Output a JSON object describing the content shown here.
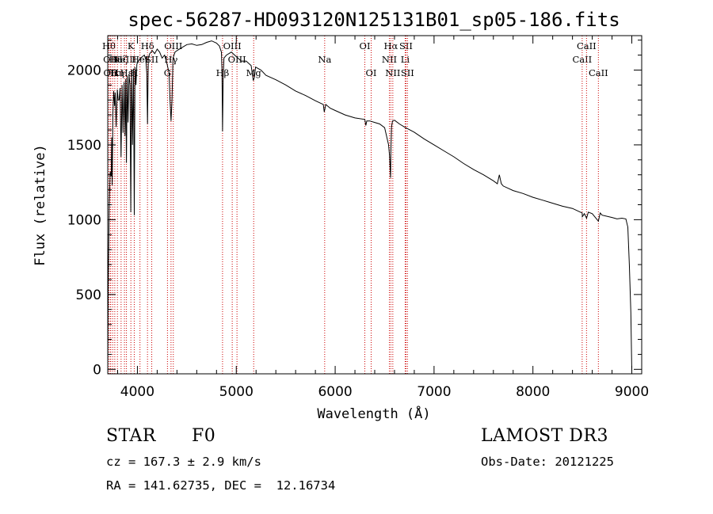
{
  "chart_data": {
    "type": "line",
    "title": "spec-56287-HD093120N125131B01_sp05-186.fits",
    "xlabel": "Wavelength (Å)",
    "ylabel": "Flux (relative)",
    "xlim": [
      3700,
      9100
    ],
    "ylim": [
      -30,
      2230
    ],
    "xticks": [
      4000,
      5000,
      6000,
      7000,
      8000,
      9000
    ],
    "yticks": [
      0,
      500,
      1000,
      1500,
      2000
    ],
    "grid": false,
    "series": [
      {
        "name": "spectrum",
        "color": "#000000",
        "x": [
          3700,
          3705,
          3715,
          3725,
          3735,
          3740,
          3745,
          3752,
          3760,
          3770,
          3775,
          3785,
          3797,
          3805,
          3815,
          3825,
          3835,
          3845,
          3855,
          3865,
          3875,
          3882,
          3889,
          3896,
          3905,
          3915,
          3925,
          3933,
          3941,
          3950,
          3960,
          3968,
          3976,
          3985,
          3995,
          4010,
          4030,
          4050,
          4070,
          4085,
          4095,
          4102,
          4110,
          4125,
          4150,
          4175,
          4200,
          4225,
          4250,
          4275,
          4300,
          4320,
          4330,
          4340,
          4350,
          4360,
          4380,
          4400,
          4450,
          4500,
          4550,
          4600,
          4650,
          4700,
          4750,
          4800,
          4830,
          4850,
          4855,
          4861,
          4867,
          4875,
          4900,
          4950,
          5000,
          5050,
          5100,
          5150,
          5172,
          5183,
          5195,
          5250,
          5300,
          5400,
          5500,
          5600,
          5700,
          5800,
          5880,
          5890,
          5896,
          5905,
          5950,
          6000,
          6100,
          6200,
          6300,
          6310,
          6320,
          6350,
          6400,
          6450,
          6500,
          6540,
          6550,
          6560,
          6563,
          6566,
          6570,
          6580,
          6600,
          6650,
          6700,
          6800,
          6900,
          7000,
          7100,
          7200,
          7300,
          7400,
          7500,
          7600,
          7640,
          7660,
          7680,
          7700,
          7800,
          7900,
          8000,
          8100,
          8200,
          8300,
          8400,
          8498,
          8500,
          8520,
          8542,
          8560,
          8600,
          8662,
          8680,
          8700,
          8800,
          8850,
          8900,
          8940,
          8960,
          8975,
          8990,
          9000
        ],
        "y": [
          0,
          560,
          1100,
          1320,
          1290,
          1550,
          1230,
          1710,
          1860,
          1760,
          1850,
          1620,
          1870,
          1800,
          1800,
          1880,
          1420,
          1900,
          1580,
          1920,
          1560,
          1940,
          1380,
          1960,
          1650,
          1970,
          1900,
          1050,
          2000,
          1500,
          2010,
          1030,
          2020,
          1900,
          2040,
          2060,
          2080,
          2090,
          2100,
          2070,
          1980,
          1640,
          2080,
          2110,
          2130,
          2110,
          2140,
          2120,
          2080,
          2100,
          2040,
          1980,
          1800,
          1660,
          1800,
          2080,
          2120,
          2130,
          2150,
          2170,
          2175,
          2165,
          2170,
          2185,
          2195,
          2180,
          2160,
          2120,
          2000,
          1590,
          1950,
          2080,
          2100,
          2120,
          2090,
          2060,
          2060,
          2030,
          1930,
          1950,
          2020,
          2000,
          1965,
          1935,
          1900,
          1860,
          1830,
          1795,
          1770,
          1720,
          1740,
          1770,
          1745,
          1730,
          1700,
          1680,
          1670,
          1630,
          1660,
          1660,
          1650,
          1640,
          1615,
          1500,
          1430,
          1280,
          1440,
          1520,
          1620,
          1660,
          1665,
          1640,
          1620,
          1585,
          1540,
          1500,
          1460,
          1420,
          1375,
          1335,
          1300,
          1260,
          1240,
          1300,
          1240,
          1225,
          1195,
          1175,
          1150,
          1130,
          1110,
          1090,
          1075,
          1045,
          1020,
          1040,
          1010,
          1050,
          1040,
          990,
          1045,
          1030,
          1015,
          1005,
          1010,
          1005,
          950,
          700,
          380,
          -10
        ]
      }
    ],
    "line_markers": [
      {
        "wl": 3712,
        "label": "Hθ",
        "row": 1
      },
      {
        "wl": 3727,
        "label": "OII",
        "row": 2
      },
      {
        "wl": 3730,
        "label": "OII",
        "row": 3
      },
      {
        "wl": 3750,
        "label": "Hκ",
        "row": 3
      },
      {
        "wl": 3771,
        "label": "Hι",
        "row": 2
      },
      {
        "wl": 3798,
        "label": "Hη",
        "row": 3
      },
      {
        "wl": 3835,
        "label": "Hζ",
        "row": 2
      },
      {
        "wl": 3869,
        "label": "NeIII",
        "row": 2
      },
      {
        "wl": 3889,
        "label": "Hε",
        "row": 3
      },
      {
        "wl": 3934,
        "label": "K",
        "row": 1
      },
      {
        "wl": 3968,
        "label": "H",
        "row": 3
      },
      {
        "wl": 4026,
        "label": "HeI",
        "row": 2
      },
      {
        "wl": 4102,
        "label": "Hδ",
        "row": 1
      },
      {
        "wl": 4145,
        "label": "SII",
        "row": 2
      },
      {
        "wl": 4304,
        "label": "G",
        "row": 3
      },
      {
        "wl": 4340,
        "label": "Hγ",
        "row": 2
      },
      {
        "wl": 4363,
        "label": "OIII",
        "row": 1
      },
      {
        "wl": 4861,
        "label": "Hβ",
        "row": 3
      },
      {
        "wl": 4959,
        "label": "OIII",
        "row": 1
      },
      {
        "wl": 5007,
        "label": "OIII",
        "row": 2
      },
      {
        "wl": 5176,
        "label": "Mg",
        "row": 3
      },
      {
        "wl": 5894,
        "label": "Na",
        "row": 2
      },
      {
        "wl": 6300,
        "label": "OI",
        "row": 1
      },
      {
        "wl": 6364,
        "label": "OI",
        "row": 3
      },
      {
        "wl": 6548,
        "label": "NII",
        "row": 2
      },
      {
        "wl": 6563,
        "label": "Hα",
        "row": 1
      },
      {
        "wl": 6583,
        "label": "NII",
        "row": 3
      },
      {
        "wl": 6708,
        "label": "Li",
        "row": 2
      },
      {
        "wl": 6716,
        "label": "SII",
        "row": 1
      },
      {
        "wl": 6731,
        "label": "SII",
        "row": 3
      },
      {
        "wl": 8498,
        "label": "CaII",
        "row": 2
      },
      {
        "wl": 8542,
        "label": "CaII",
        "row": 1
      },
      {
        "wl": 8662,
        "label": "CaII",
        "row": 3
      }
    ]
  },
  "info": {
    "object_class": "STAR",
    "subclass": "F0",
    "survey": "LAMOST DR3",
    "cz": "cz = 167.3 ± 2.9 km/s",
    "obs_date": "Obs-Date: 20121225",
    "coords": "RA = 141.62735, DEC =  12.16734"
  },
  "colors": {
    "marker": "#cc0000",
    "line": "#000000"
  }
}
